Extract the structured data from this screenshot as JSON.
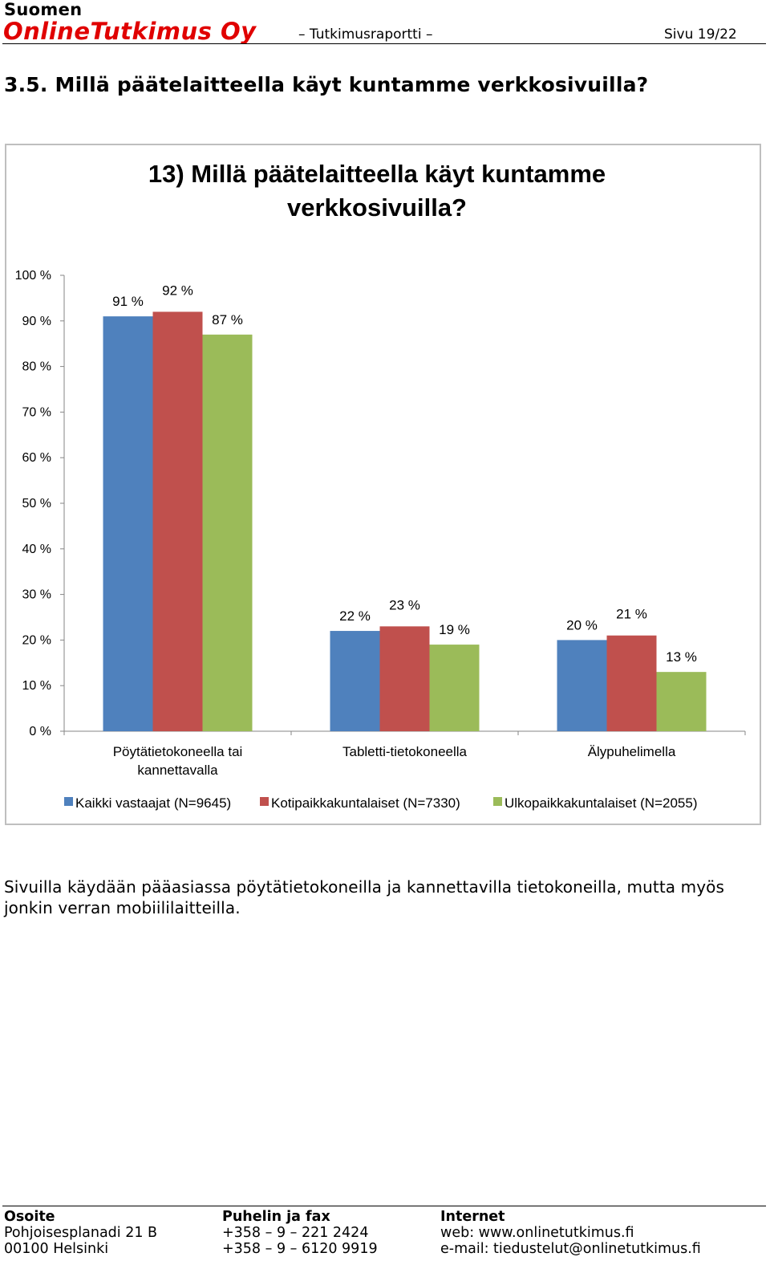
{
  "header": {
    "company_line1": "Suomen",
    "company_line2": "OnlineTutkimus Oy",
    "report_label": "– Tutkimusraportti –",
    "page_number": "Sivu 19/22"
  },
  "section_heading": "3.5. Millä päätelaitteella käyt kuntamme verkkosivuilla?",
  "chart_data": {
    "type": "bar",
    "title": "13) Millä päätelaitteella käyt kuntamme verkkosivuilla?",
    "categories": [
      "Pöytätietokoneella tai kannettavalla",
      "Tabletti-tietokoneella",
      "Älypuhelimella"
    ],
    "series": [
      {
        "name": "Kaikki vastaajat (N=9645)",
        "values": [
          91,
          22,
          20
        ],
        "labels": [
          "91 %",
          "22 %",
          "20 %"
        ],
        "color": "#4f81bd"
      },
      {
        "name": "Kotipaikkakuntalaiset (N=7330)",
        "values": [
          92,
          23,
          21
        ],
        "labels": [
          "92 %",
          "23 %",
          "21 %"
        ],
        "color": "#c0504d"
      },
      {
        "name": "Ulkopaikkakuntalaiset (N=2055)",
        "values": [
          87,
          19,
          13
        ],
        "labels": [
          "87 %",
          "19 %",
          "13 %"
        ],
        "color": "#9bbb59"
      }
    ],
    "ylim": [
      0,
      100
    ],
    "yticks": [
      "0 %",
      "10 %",
      "20 %",
      "30 %",
      "40 %",
      "50 %",
      "60 %",
      "70 %",
      "80 %",
      "90 %",
      "100 %"
    ],
    "grid": false,
    "legend_position": "bottom"
  },
  "body_text": "Sivuilla käydään pääasiassa pöytätietokoneilla ja kannettavilla tietokoneilla, mutta myös jonkin verran mobiililaitteilla.",
  "footer": {
    "address": {
      "heading": "Osoite",
      "line1": "Pohjoisesplanadi 21 B",
      "line2": "00100 Helsinki"
    },
    "phone": {
      "heading": "Puhelin ja fax",
      "line1": "+358 – 9 – 221 2424",
      "line2": "+358 – 9 – 6120 9919"
    },
    "internet": {
      "heading": "Internet",
      "line1": "web: www.onlinetutkimus.fi",
      "line2": "e-mail: tiedustelut@onlinetutkimus.fi"
    }
  }
}
